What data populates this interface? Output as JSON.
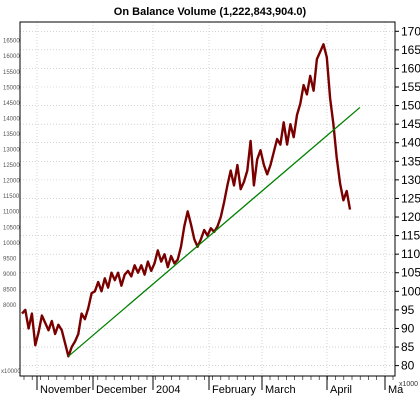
{
  "chart_data": {
    "type": "line",
    "title": "On Balance Volume (1,222,843,904.0)",
    "right_axis": {
      "ticks": [
        80,
        85,
        90,
        95,
        100,
        105,
        110,
        115,
        120,
        125,
        130,
        135,
        140,
        145,
        150,
        155,
        160,
        165,
        170
      ],
      "multiplier_label": "x1000",
      "ylim": [
        77.2,
        172.5
      ]
    },
    "left_axis": {
      "ticks": [
        8000,
        8500,
        9000,
        9500,
        10000,
        10500,
        11000,
        11500,
        12000,
        12500,
        13000,
        13500,
        14000,
        14500,
        15000,
        15500,
        16000,
        16500
      ],
      "multiplier_label": "x10000"
    },
    "x_tick_labels": [
      "November",
      "December",
      "2004",
      "February",
      "March",
      "April",
      "Ma"
    ],
    "grid": true,
    "colors": {
      "series": "#7a0000",
      "trendline": "#008000",
      "grid": "#bbbbbb"
    },
    "series": [
      {
        "values": [
          94,
          95,
          90,
          94,
          85.5,
          89,
          93.5,
          91.5,
          89.5,
          92,
          88.5,
          91,
          89.5,
          86,
          82.5,
          85,
          86.5,
          88.5,
          94,
          92.5,
          95.5,
          99.5,
          100,
          102.5,
          100,
          103.5,
          101,
          105,
          103,
          105,
          101.5,
          104.5,
          105.5,
          104,
          107,
          105,
          107,
          104.5,
          108,
          105.5,
          107.5,
          111,
          108,
          110,
          106.5,
          109.5,
          107.5,
          108.5,
          112,
          117.5,
          121.5,
          118,
          114,
          112,
          114,
          116.5,
          115,
          117,
          116,
          117.5,
          120,
          124,
          128.5,
          132.5,
          128.5,
          134,
          127.5,
          129.5,
          132.5,
          140.5,
          128.5,
          135.5,
          138,
          134,
          131.5,
          134,
          137.5,
          141,
          139.5,
          145.5,
          139.5,
          145,
          141.5,
          147.5,
          150.5,
          155.5,
          153,
          158,
          154,
          162.5,
          164.5,
          166.5,
          163,
          152,
          145,
          136,
          129,
          124.5,
          127,
          122
        ]
      }
    ],
    "trendline": {
      "from_index": 14,
      "from_value": 82.5,
      "to_index": 102,
      "to_value": 149.5
    }
  }
}
